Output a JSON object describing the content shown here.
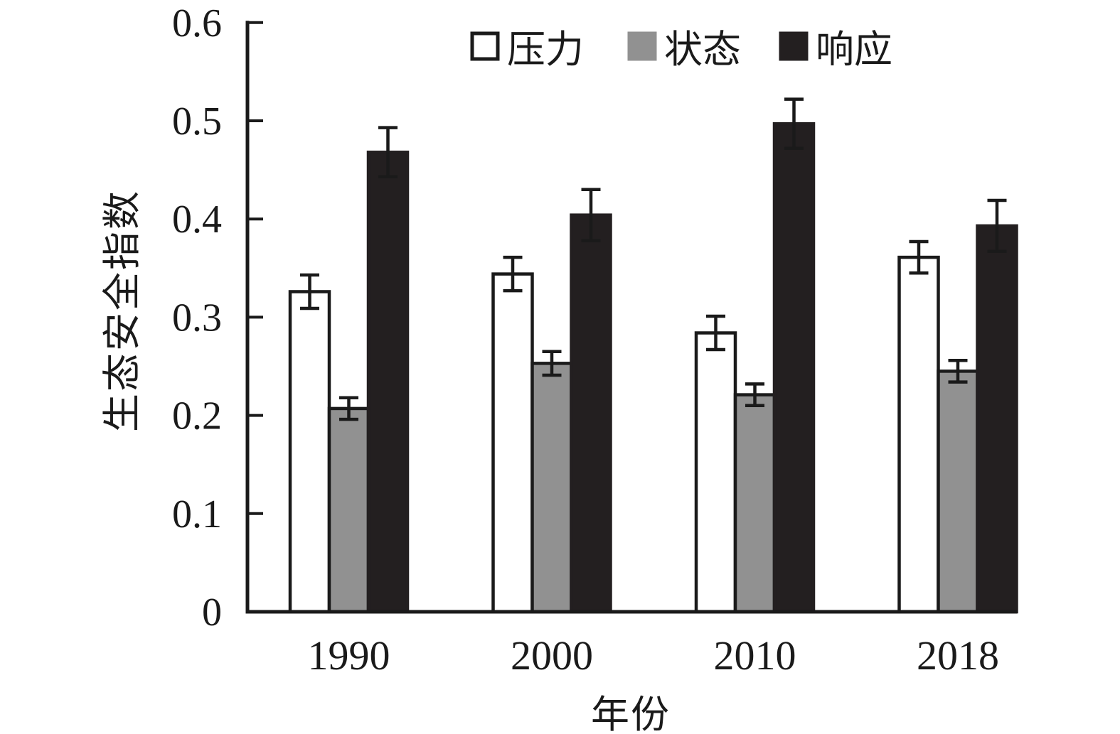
{
  "figure": {
    "background": "#ffffff",
    "kind": "grouped-bar-chart-with-error-bars"
  },
  "chart_data": {
    "type": "bar",
    "title": "",
    "xlabel": "年份",
    "ylabel": "生态安全指数",
    "categories": [
      "1990",
      "2000",
      "2010",
      "2018"
    ],
    "series": [
      {
        "key": "pressure",
        "name": "压力",
        "fill": "#ffffff",
        "stroke": "#1a1a1a",
        "outlined_swatch": true,
        "values": [
          0.326,
          0.344,
          0.284,
          0.361
        ],
        "errors": [
          0.017,
          0.017,
          0.017,
          0.016
        ]
      },
      {
        "key": "state",
        "name": "状态",
        "fill": "#919191",
        "stroke": "#1a1a1a",
        "outlined_swatch": false,
        "values": [
          0.207,
          0.253,
          0.221,
          0.245
        ],
        "errors": [
          0.011,
          0.012,
          0.011,
          0.011
        ]
      },
      {
        "key": "response",
        "name": "响应",
        "fill": "#231f20",
        "stroke": "#231f20",
        "outlined_swatch": false,
        "values": [
          0.468,
          0.404,
          0.497,
          0.393
        ],
        "errors": [
          0.025,
          0.026,
          0.025,
          0.026
        ]
      }
    ],
    "ylim": [
      0,
      0.6
    ],
    "yticks": [
      0,
      0.1,
      0.2,
      0.3,
      0.4,
      0.5,
      0.6
    ],
    "ytick_labels": [
      "0",
      "0.1",
      "0.2",
      "0.3",
      "0.4",
      "0.5",
      "0.6"
    ],
    "legend_position": "top",
    "grid": false,
    "error_bars": true,
    "axis_color": "#1a1a1a",
    "text_color": "#1a1a1a"
  }
}
